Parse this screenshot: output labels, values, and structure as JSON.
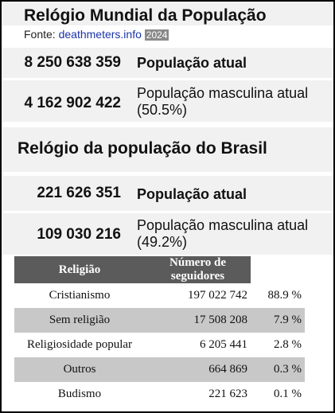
{
  "world": {
    "title": "Relógio Mundial da População",
    "source_label": "Fonte:",
    "source_link": "deathmeters.info",
    "year": "2024",
    "rows": [
      {
        "value": "8 250 638 359",
        "label": "População atual"
      },
      {
        "value": "4 162 902 422",
        "label": "População masculina atual (50.5%)"
      }
    ]
  },
  "brazil": {
    "title": "Relógio da população do Brasil",
    "rows": [
      {
        "value": "221 626 351",
        "label": "População atual"
      },
      {
        "value": "109 030 216",
        "label": "População masculina atual (49.2%)"
      }
    ]
  },
  "table": {
    "headers": [
      "Religião",
      "Número de seguidores"
    ],
    "rows": [
      [
        "Cristianismo",
        "197 022 742",
        "88.9 %"
      ],
      [
        "Sem religião",
        "17 508 208",
        "7.9 %"
      ],
      [
        "Religiosidade popular",
        "6 205 441",
        "2.8 %"
      ],
      [
        "Outros",
        "664 869",
        "0.3 %"
      ],
      [
        "Budismo",
        "221 623",
        "0.1 %"
      ]
    ]
  }
}
